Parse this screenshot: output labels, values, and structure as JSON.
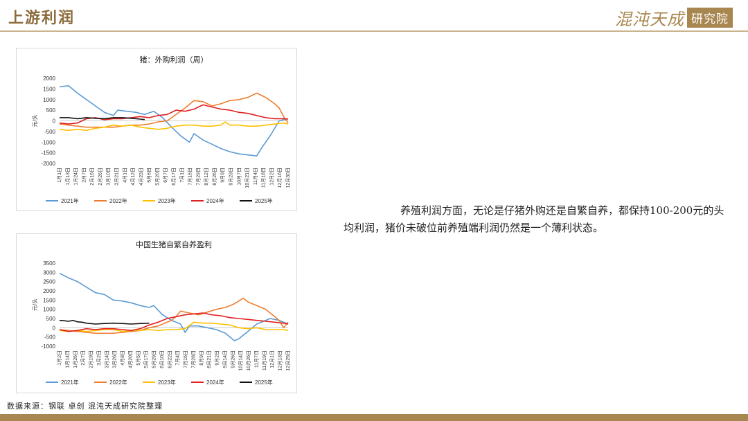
{
  "header": {
    "title": "上游利润",
    "logo_text": "混沌天成",
    "logo_box": "研究院"
  },
  "body_text": "养殖利润方面，无论是仔猪外购还是自繁自养，都保持100-200元的头均利润，猪价未破位前养殖端利润仍然是一个薄利状态。",
  "source": "数据来源：钢联 卓创 混沌天成研究院整理",
  "colors": {
    "2021年": "#5b9bd5",
    "2022年": "#ed7d31",
    "2023年": "#ffc000",
    "2024年": "#e02020",
    "2025年": "#111111",
    "accent": "#a8864f"
  },
  "chart_data": [
    {
      "type": "line",
      "title": "猪：外购利润（周）",
      "ylabel": "元/头",
      "ylim": [
        -2000,
        2000
      ],
      "yticks": [
        2000,
        1500,
        1000,
        500,
        0,
        -500,
        -1000,
        -1500,
        -2000
      ],
      "xticks": [
        "1月1日",
        "1月13日",
        "1月24日",
        "2月7日",
        "2月16日",
        "2月26日",
        "3月10日",
        "3月21日",
        "4月1日",
        "4月12日",
        "4月23日",
        "5月6日",
        "5月20日",
        "6月7日",
        "6月17日",
        "7月1日",
        "7月15日",
        "7月29日",
        "8月12日",
        "8月26日",
        "9月9日",
        "9月23日",
        "10月7日",
        "10月21日",
        "11月4日",
        "11月18日",
        "12月2日",
        "12月16日",
        "12月30日"
      ],
      "x_count": 52,
      "legend": [
        "2021年",
        "2022年",
        "2023年",
        "2024年",
        "2025年"
      ],
      "series": [
        {
          "name": "2021年",
          "points": [
            [
              0,
              1600
            ],
            [
              2,
              1650
            ],
            [
              4,
              1300
            ],
            [
              6,
              1000
            ],
            [
              8,
              700
            ],
            [
              10,
              400
            ],
            [
              12,
              250
            ],
            [
              13,
              500
            ],
            [
              15,
              450
            ],
            [
              17,
              400
            ],
            [
              19,
              300
            ],
            [
              21,
              450
            ],
            [
              23,
              150
            ],
            [
              25,
              -300
            ],
            [
              27,
              -700
            ],
            [
              29,
              -1000
            ],
            [
              30,
              -600
            ],
            [
              32,
              -900
            ],
            [
              34,
              -1100
            ],
            [
              36,
              -1300
            ],
            [
              38,
              -1450
            ],
            [
              40,
              -1550
            ],
            [
              42,
              -1600
            ],
            [
              44,
              -1650
            ],
            [
              45,
              -1300
            ],
            [
              47,
              -700
            ],
            [
              49,
              0
            ],
            [
              51,
              100
            ]
          ]
        },
        {
          "name": "2022年",
          "points": [
            [
              0,
              -150
            ],
            [
              2,
              -200
            ],
            [
              4,
              -250
            ],
            [
              6,
              -300
            ],
            [
              8,
              -300
            ],
            [
              10,
              -300
            ],
            [
              12,
              -300
            ],
            [
              14,
              -250
            ],
            [
              16,
              -200
            ],
            [
              18,
              -200
            ],
            [
              20,
              -150
            ],
            [
              22,
              -50
            ],
            [
              24,
              0
            ],
            [
              26,
              300
            ],
            [
              28,
              600
            ],
            [
              30,
              950
            ],
            [
              32,
              900
            ],
            [
              34,
              700
            ],
            [
              36,
              800
            ],
            [
              38,
              950
            ],
            [
              40,
              1000
            ],
            [
              42,
              1100
            ],
            [
              43,
              1200
            ],
            [
              44,
              1300
            ],
            [
              46,
              1100
            ],
            [
              48,
              800
            ],
            [
              49,
              600
            ],
            [
              50,
              200
            ],
            [
              51,
              -100
            ]
          ]
        },
        {
          "name": "2023年",
          "points": [
            [
              0,
              -400
            ],
            [
              2,
              -450
            ],
            [
              4,
              -400
            ],
            [
              6,
              -450
            ],
            [
              8,
              -350
            ],
            [
              10,
              -300
            ],
            [
              12,
              -200
            ],
            [
              14,
              -250
            ],
            [
              16,
              -200
            ],
            [
              18,
              -300
            ],
            [
              20,
              -350
            ],
            [
              22,
              -400
            ],
            [
              24,
              -350
            ],
            [
              26,
              -250
            ],
            [
              28,
              -200
            ],
            [
              30,
              -200
            ],
            [
              32,
              -250
            ],
            [
              34,
              -250
            ],
            [
              36,
              -200
            ],
            [
              37,
              -50
            ],
            [
              38,
              -200
            ],
            [
              40,
              -200
            ],
            [
              42,
              -250
            ],
            [
              44,
              -250
            ],
            [
              46,
              -200
            ],
            [
              48,
              -150
            ],
            [
              50,
              -100
            ],
            [
              51,
              -150
            ]
          ]
        },
        {
          "name": "2024年",
          "points": [
            [
              0,
              -100
            ],
            [
              2,
              -150
            ],
            [
              4,
              -100
            ],
            [
              6,
              100
            ],
            [
              8,
              150
            ],
            [
              10,
              50
            ],
            [
              12,
              100
            ],
            [
              14,
              100
            ],
            [
              16,
              150
            ],
            [
              18,
              200
            ],
            [
              20,
              150
            ],
            [
              22,
              250
            ],
            [
              24,
              300
            ],
            [
              26,
              500
            ],
            [
              28,
              450
            ],
            [
              30,
              550
            ],
            [
              32,
              750
            ],
            [
              34,
              650
            ],
            [
              36,
              550
            ],
            [
              38,
              500
            ],
            [
              40,
              400
            ],
            [
              42,
              350
            ],
            [
              44,
              250
            ],
            [
              46,
              150
            ],
            [
              48,
              100
            ],
            [
              50,
              100
            ],
            [
              51,
              80
            ]
          ]
        },
        {
          "name": "2025年",
          "points": [
            [
              0,
              150
            ],
            [
              2,
              150
            ],
            [
              4,
              100
            ],
            [
              6,
              150
            ],
            [
              8,
              120
            ],
            [
              10,
              100
            ],
            [
              12,
              150
            ],
            [
              14,
              150
            ],
            [
              16,
              120
            ],
            [
              18,
              80
            ],
            [
              19,
              60
            ]
          ]
        }
      ]
    },
    {
      "type": "line",
      "title": "中国生猪自繁自养盈利",
      "ylabel": "元/头",
      "ylim": [
        -1000,
        3500
      ],
      "yticks": [
        3500,
        3000,
        2500,
        2000,
        1500,
        1000,
        500,
        0,
        -500,
        -1000
      ],
      "xticks": [
        "1月2日",
        "1月14日",
        "1月26日",
        "2月7日",
        "2月19日",
        "3月2日",
        "3月14日",
        "3月26日",
        "4月8日",
        "4月20日",
        "5月5日",
        "5月17日",
        "5月29日",
        "6月10日",
        "6月22日",
        "7月4日",
        "7月16日",
        "7月28日",
        "8月9日",
        "8月21日",
        "9月2日",
        "9月14日",
        "9月26日",
        "10月14日",
        "10月26日",
        "11月7日",
        "11月19日",
        "12月1日",
        "12月13日",
        "12月25日"
      ],
      "x_count": 52,
      "legend": [
        "2021年",
        "2022年",
        "2023年",
        "2024年",
        "2025年"
      ],
      "series": [
        {
          "name": "2021年",
          "points": [
            [
              0,
              2950
            ],
            [
              2,
              2700
            ],
            [
              4,
              2500
            ],
            [
              6,
              2200
            ],
            [
              8,
              1900
            ],
            [
              10,
              1800
            ],
            [
              12,
              1500
            ],
            [
              14,
              1450
            ],
            [
              16,
              1350
            ],
            [
              18,
              1200
            ],
            [
              20,
              1100
            ],
            [
              21,
              1200
            ],
            [
              23,
              700
            ],
            [
              25,
              400
            ],
            [
              26,
              300
            ],
            [
              27,
              200
            ],
            [
              28,
              -250
            ],
            [
              29,
              100
            ],
            [
              31,
              100
            ],
            [
              33,
              0
            ],
            [
              35,
              -100
            ],
            [
              37,
              -300
            ],
            [
              39,
              -700
            ],
            [
              40,
              -600
            ],
            [
              42,
              -200
            ],
            [
              44,
              200
            ],
            [
              46,
              400
            ],
            [
              47,
              500
            ],
            [
              49,
              400
            ],
            [
              51,
              200
            ]
          ]
        },
        {
          "name": "2022年",
          "points": [
            [
              0,
              -100
            ],
            [
              2,
              -150
            ],
            [
              4,
              -200
            ],
            [
              6,
              -250
            ],
            [
              8,
              -300
            ],
            [
              10,
              -300
            ],
            [
              12,
              -300
            ],
            [
              14,
              -250
            ],
            [
              16,
              -200
            ],
            [
              18,
              -150
            ],
            [
              20,
              0
            ],
            [
              22,
              100
            ],
            [
              24,
              300
            ],
            [
              25,
              400
            ],
            [
              26,
              600
            ],
            [
              27,
              900
            ],
            [
              29,
              800
            ],
            [
              31,
              700
            ],
            [
              33,
              850
            ],
            [
              35,
              1000
            ],
            [
              37,
              1100
            ],
            [
              39,
              1300
            ],
            [
              41,
              1600
            ],
            [
              42,
              1400
            ],
            [
              44,
              1200
            ],
            [
              46,
              1000
            ],
            [
              47,
              800
            ],
            [
              48,
              600
            ],
            [
              49,
              400
            ],
            [
              50,
              0
            ],
            [
              51,
              300
            ]
          ]
        },
        {
          "name": "2023年",
          "points": [
            [
              0,
              -150
            ],
            [
              2,
              -200
            ],
            [
              4,
              -150
            ],
            [
              6,
              -200
            ],
            [
              8,
              -150
            ],
            [
              10,
              -100
            ],
            [
              12,
              -100
            ],
            [
              14,
              -200
            ],
            [
              16,
              -150
            ],
            [
              18,
              -150
            ],
            [
              20,
              -100
            ],
            [
              22,
              -150
            ],
            [
              24,
              -100
            ],
            [
              26,
              -100
            ],
            [
              28,
              -50
            ],
            [
              30,
              300
            ],
            [
              32,
              250
            ],
            [
              34,
              250
            ],
            [
              36,
              200
            ],
            [
              38,
              150
            ],
            [
              40,
              0
            ],
            [
              42,
              -50
            ],
            [
              44,
              0
            ],
            [
              46,
              -100
            ],
            [
              48,
              -100
            ],
            [
              50,
              -100
            ],
            [
              51,
              -150
            ]
          ]
        },
        {
          "name": "2024年",
          "points": [
            [
              0,
              -100
            ],
            [
              2,
              -200
            ],
            [
              4,
              -150
            ],
            [
              6,
              -50
            ],
            [
              8,
              -100
            ],
            [
              10,
              -50
            ],
            [
              12,
              -50
            ],
            [
              14,
              -100
            ],
            [
              16,
              -150
            ],
            [
              18,
              -50
            ],
            [
              20,
              150
            ],
            [
              22,
              300
            ],
            [
              24,
              500
            ],
            [
              26,
              600
            ],
            [
              28,
              700
            ],
            [
              30,
              750
            ],
            [
              32,
              800
            ],
            [
              34,
              700
            ],
            [
              36,
              650
            ],
            [
              38,
              550
            ],
            [
              40,
              500
            ],
            [
              42,
              450
            ],
            [
              44,
              400
            ],
            [
              46,
              350
            ],
            [
              48,
              300
            ],
            [
              50,
              250
            ],
            [
              51,
              200
            ]
          ]
        },
        {
          "name": "2025年",
          "points": [
            [
              0,
              400
            ],
            [
              1,
              380
            ],
            [
              2,
              350
            ],
            [
              3,
              400
            ],
            [
              4,
              320
            ],
            [
              5,
              300
            ],
            [
              6,
              250
            ],
            [
              8,
              200
            ],
            [
              10,
              230
            ],
            [
              12,
              250
            ],
            [
              14,
              230
            ],
            [
              16,
              200
            ],
            [
              18,
              230
            ],
            [
              20,
              250
            ]
          ]
        }
      ]
    }
  ]
}
